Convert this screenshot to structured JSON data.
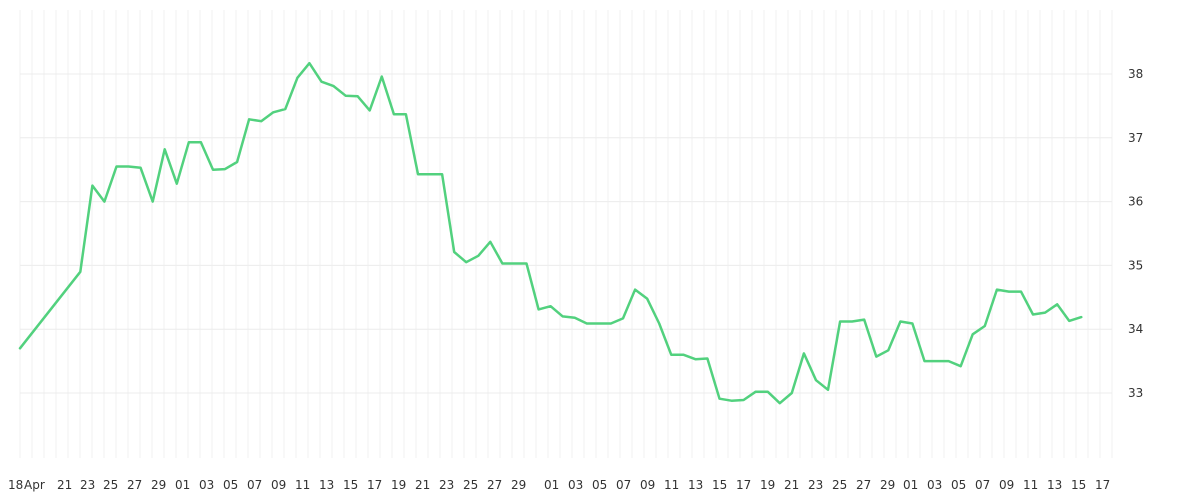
{
  "chart_data": {
    "type": "line",
    "title": "",
    "xlabel": "",
    "ylabel": "",
    "line_color": "#52d17e",
    "grid": true,
    "ylim": [
      32,
      39
    ],
    "y_ticks": [
      "33",
      "34",
      "35",
      "36",
      "37",
      "38"
    ],
    "x_ticks": [
      "18",
      "Apr",
      "21",
      "23",
      "25",
      "27",
      "29",
      "01",
      "03",
      "05",
      "07",
      "09",
      "11",
      "13",
      "15",
      "17",
      "19",
      "21",
      "23",
      "25",
      "27",
      "29",
      "01",
      "03",
      "05",
      "07",
      "09",
      "11",
      "13",
      "15",
      "17",
      "19",
      "21",
      "23",
      "25",
      "27",
      "29",
      "01",
      "03",
      "05",
      "07",
      "09",
      "11",
      "13",
      "15",
      "17"
    ],
    "values": [
      33.7,
      34.9,
      36.25,
      36.0,
      36.55,
      36.55,
      36.53,
      36.0,
      36.82,
      36.28,
      36.93,
      36.93,
      36.5,
      36.51,
      36.62,
      37.29,
      37.26,
      37.4,
      37.45,
      37.94,
      38.17,
      37.88,
      37.81,
      37.66,
      37.65,
      37.43,
      37.96,
      37.37,
      37.37,
      36.43,
      36.43,
      36.43,
      35.21,
      35.05,
      35.15,
      35.37,
      35.03,
      35.03,
      35.03,
      34.31,
      34.36,
      34.2,
      34.18,
      34.09,
      34.09,
      34.09,
      34.17,
      34.62,
      34.48,
      34.09,
      33.6,
      33.6,
      33.53,
      33.54,
      32.91,
      32.88,
      32.89,
      33.02,
      33.02,
      32.84,
      33.0,
      33.62,
      33.2,
      33.05,
      34.12,
      34.12,
      34.15,
      33.57,
      33.67,
      34.12,
      34.09,
      33.5,
      33.5,
      33.5,
      33.42,
      33.92,
      34.05,
      34.62,
      34.59,
      34.59,
      34.23,
      34.26,
      34.39,
      34.13,
      34.19
    ]
  }
}
